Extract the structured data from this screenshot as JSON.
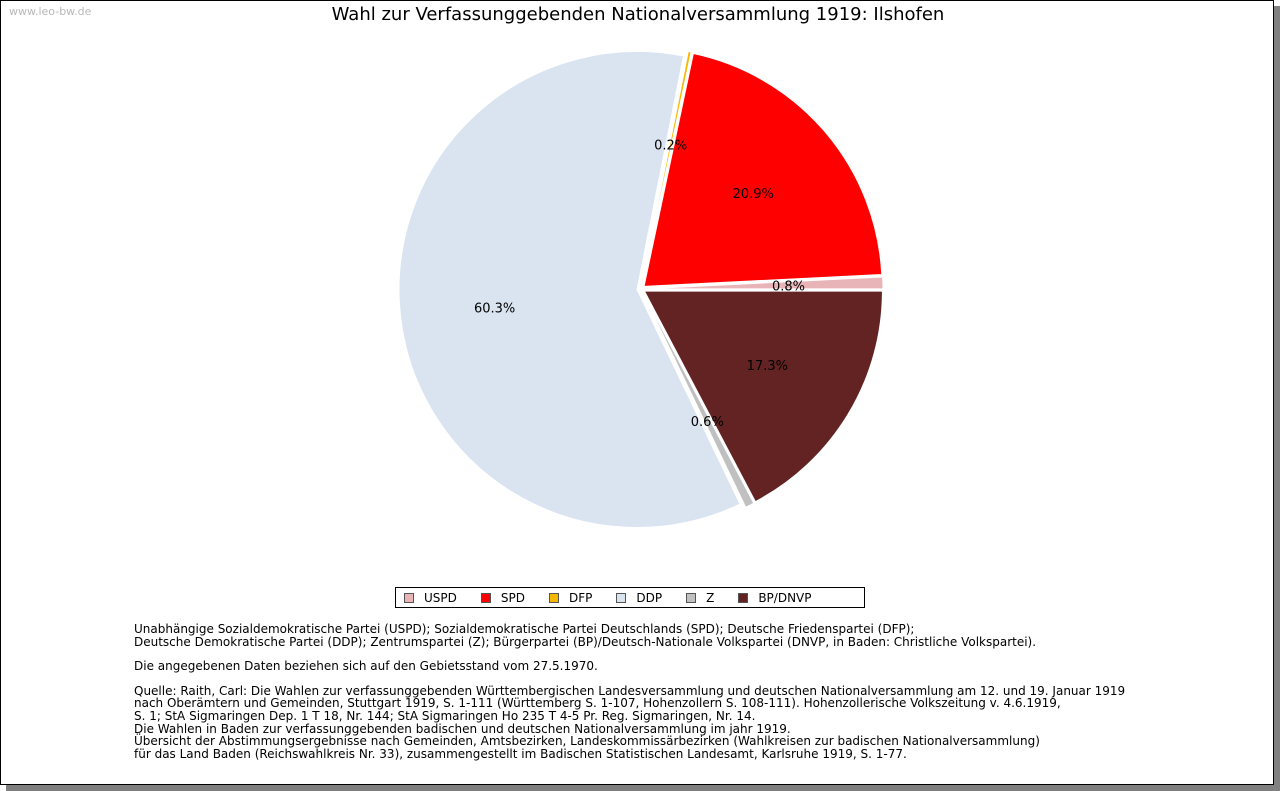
{
  "watermark": "www.leo-bw.de",
  "colors": {
    "USPD": "#e8b4b8",
    "SPD": "#ff0000",
    "DFP": "#f5b800",
    "DDP": "#dae4f1",
    "Z": "#c0c0c0",
    "BP/DNVP": "#632323"
  },
  "chart_data": {
    "type": "pie",
    "title": "Wahl zur Verfassunggebenden Nationalversammlung 1919: Ilshofen",
    "slices": [
      {
        "name": "USPD",
        "value": 0.8,
        "label": "0.8%"
      },
      {
        "name": "SPD",
        "value": 20.9,
        "label": "20.9%"
      },
      {
        "name": "DFP",
        "value": 0.2,
        "label": "0.2%"
      },
      {
        "name": "DDP",
        "value": 60.3,
        "label": "60.3%"
      },
      {
        "name": "Z",
        "value": 0.6,
        "label": "0.6%"
      },
      {
        "name": "BP/DNVP",
        "value": 17.3,
        "label": "17.3%"
      }
    ],
    "legend": [
      "USPD",
      "SPD",
      "DFP",
      "DDP",
      "Z",
      "BP/DNVP"
    ],
    "legend_position": "bottom"
  },
  "notes": {
    "parties": "Unabhängige Sozialdemokratische Partei (USPD); Sozialdemokratische Partei Deutschlands (SPD); Deutsche Friedenspartei (DFP);\nDeutsche Demokratische Partei (DDP); Zentrumspartei (Z); Bürgerpartei (BP)/Deutsch-Nationale Volkspartei (DNVP, in Baden: Christliche Volkspartei).",
    "gebietsstand": "Die angegebenen Daten beziehen sich auf den Gebietsstand vom 27.5.1970.",
    "quelle": "Quelle: Raith, Carl: Die Wahlen zur verfassunggebenden Württembergischen Landesversammlung und deutschen Nationalversammlung am 12. und 19. Januar 1919\nnach Oberämtern und Gemeinden, Stuttgart 1919, S. 1-111 (Württemberg S. 1-107, Hohenzollern S. 108-111). Hohenzollerische Volkszeitung v. 4.6.1919,\nS. 1; StA Sigmaringen Dep. 1 T 18, Nr. 144; StA Sigmaringen Ho 235 T 4-5 Pr. Reg. Sigmaringen, Nr. 14.\nDie Wahlen in Baden zur verfassunggebenden badischen und deutschen Nationalversammlung im jahr 1919.\nÜbersicht der Abstimmungsergebnisse nach Gemeinden, Amtsbezirken, Landeskommissärbezirken (Wahlkreisen zur badischen Nationalversammlung)\nfür das Land Baden (Reichswahlkreis Nr. 33), zusammengestellt im Badischen Statistischen Landesamt, Karlsruhe 1919, S. 1-77."
  }
}
